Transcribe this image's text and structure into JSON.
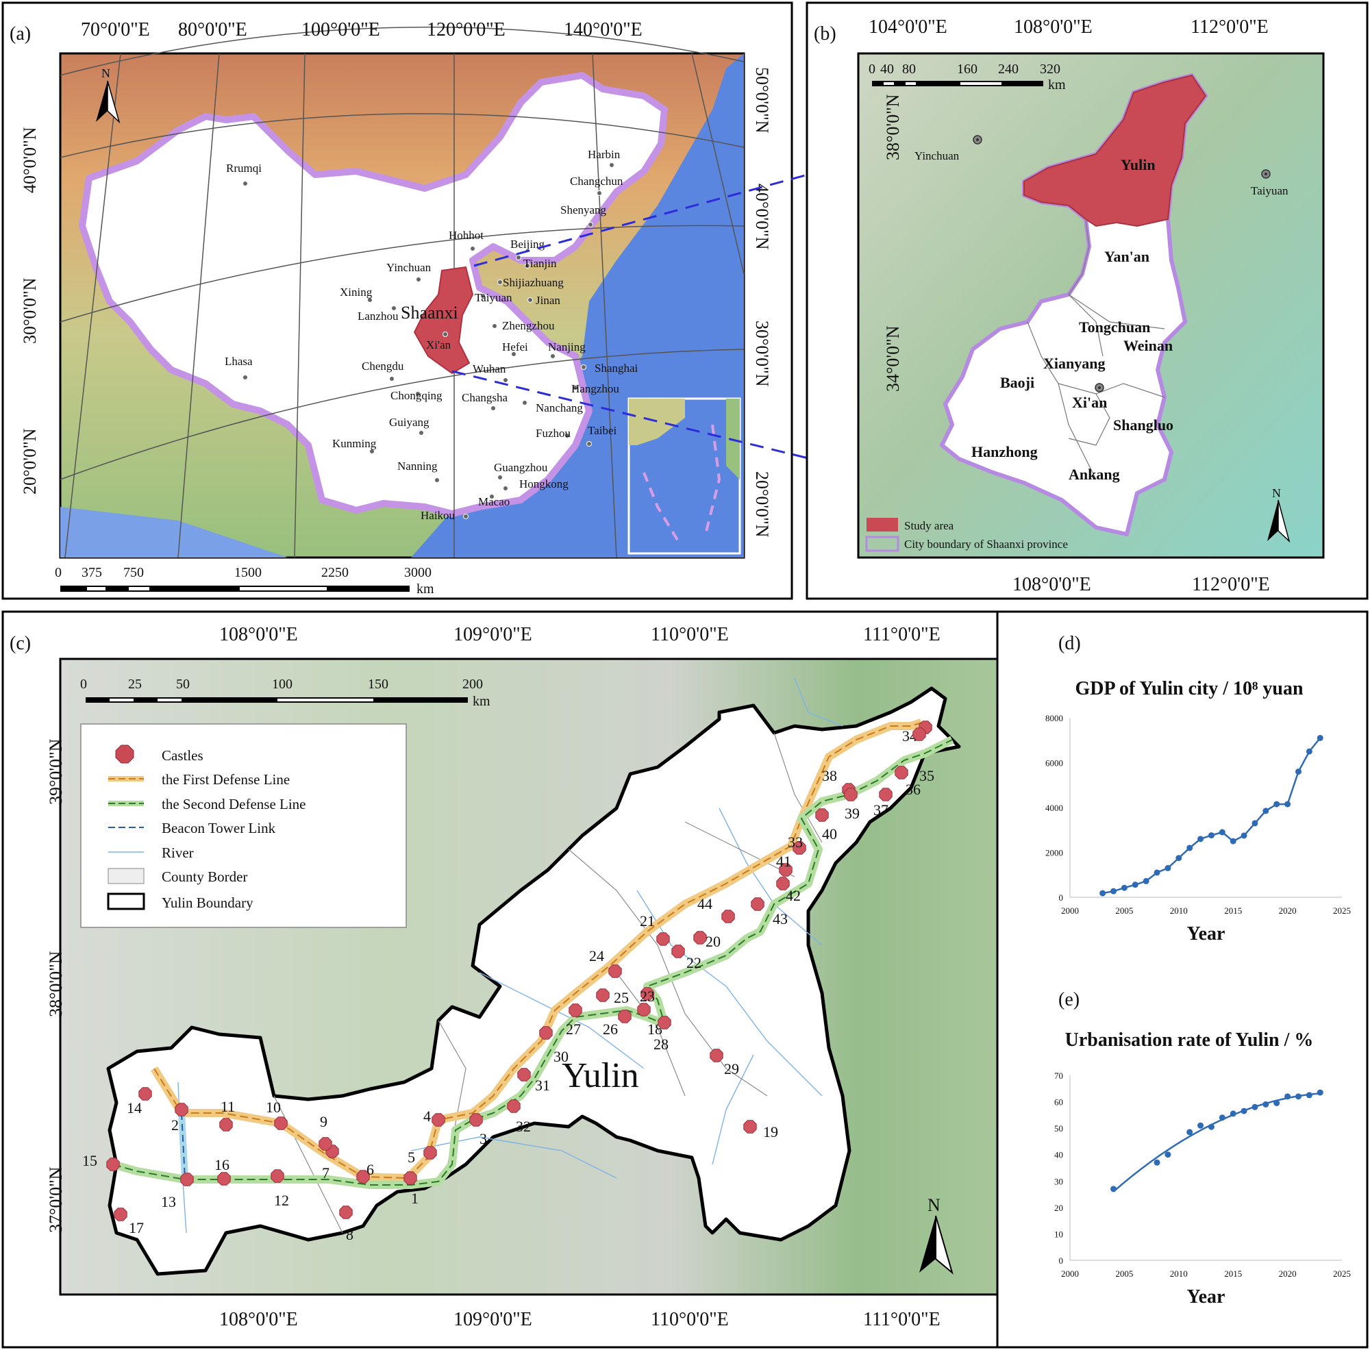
{
  "panels": {
    "a": "(a)",
    "b": "(b)",
    "c": "(c)",
    "d": "(d)",
    "e": "(e)"
  },
  "map_a": {
    "lon_ticks": [
      "70°0'0\"E",
      "80°0'0\"E",
      "100°0'0\"E",
      "120°0'0\"E",
      "140°0'0\"E"
    ],
    "lat_ticks": [
      "50°0'0\"N",
      "40°0'0\"N",
      "30°0'0\"N",
      "20°0'0\"N"
    ],
    "lat_ticks_left": [
      "40°0'0\"N",
      "30°0'0\"N",
      "20°0'0\"N"
    ],
    "highlight": "Shaanxi",
    "cities": [
      "Rrumqi",
      "Harbin",
      "Changchun",
      "Shenyang",
      "Hohhot",
      "Beijing",
      "Tianjin",
      "Yinchuan",
      "Shijiazhuang",
      "Xining",
      "Taiyuan",
      "Jinan",
      "Lanzhou",
      "Zhengzhou",
      "Xi'an",
      "Hefei",
      "Nanjing",
      "Lhasa",
      "Chengdu",
      "Wuhan",
      "Shanghai",
      "Hangzhou",
      "Chongqing",
      "Changsha",
      "Nanchang",
      "Guiyang",
      "Kunming",
      "Fuzhou",
      "Taibei",
      "Nanning",
      "Guangzhou",
      "Hongkong",
      "Macao",
      "Haikou"
    ],
    "scale": {
      "ticks": [
        "0",
        "375",
        "750",
        "1500",
        "2250",
        "3000"
      ],
      "unit": "km"
    },
    "north": "N"
  },
  "map_b": {
    "lon_ticks_top": [
      "104°0'0\"E",
      "108°0'0\"E",
      "112°0'0\"E"
    ],
    "lon_ticks_bottom": [
      "108°0'0\"E",
      "112°0'0\"E"
    ],
    "lat_ticks": [
      "38°0'0\"N",
      "34°0'0\"N"
    ],
    "scale": {
      "ticks": [
        "0",
        "40",
        "80",
        "160",
        "240",
        "320"
      ],
      "unit": "km"
    },
    "cities": [
      "Yinchuan",
      "Yulin",
      "Taiyuan",
      "Yan'an",
      "Tongchuan",
      "Weinan",
      "Xianyang",
      "Baoji",
      "Xi'an",
      "Shangluo",
      "Hanzhong",
      "Ankang"
    ],
    "legend": [
      "Study area",
      "City boundary of Shaanxi province"
    ],
    "north": "N"
  },
  "map_c": {
    "lon_ticks": [
      "108°0'0\"E",
      "109°0'0\"E",
      "110°0'0\"E",
      "111°0'0\"E"
    ],
    "lat_ticks": [
      "39°0'0\"N",
      "38°0'0\"N",
      "37°0'0\"N"
    ],
    "scale": {
      "ticks": [
        "0",
        "25",
        "50",
        "100",
        "150",
        "200"
      ],
      "unit": "km"
    },
    "legend": [
      "Castles",
      "the First Defense Line",
      "the Second Defense Line",
      "Beacon Tower Link",
      "River",
      "County Border",
      "Yulin Boundary"
    ],
    "title": "Yulin",
    "north": "N",
    "castles": [
      "1",
      "2",
      "3",
      "4",
      "5",
      "6",
      "7",
      "8",
      "9",
      "10",
      "11",
      "12",
      "13",
      "14",
      "15",
      "16",
      "17",
      "18",
      "19",
      "20",
      "21",
      "22",
      "23",
      "24",
      "25",
      "26",
      "27",
      "28",
      "29",
      "30",
      "31",
      "32",
      "33",
      "34",
      "35",
      "36",
      "37",
      "38",
      "39",
      "40",
      "41",
      "42",
      "43",
      "44"
    ]
  },
  "chart_data": [
    {
      "type": "line",
      "title": "GDP of Yulin city / 10⁸ yuan",
      "xlabel": "Year",
      "ylabel": "",
      "x": [
        2003,
        2004,
        2005,
        2006,
        2007,
        2008,
        2009,
        2010,
        2011,
        2012,
        2013,
        2014,
        2015,
        2016,
        2017,
        2018,
        2019,
        2020,
        2021,
        2022,
        2023
      ],
      "values": [
        180,
        270,
        420,
        560,
        720,
        1100,
        1300,
        1750,
        2200,
        2600,
        2760,
        2900,
        2500,
        2750,
        3300,
        3850,
        4150,
        4150,
        5600,
        6500,
        7100
      ],
      "xlim": [
        2000,
        2025
      ],
      "ylim": [
        0,
        8000
      ],
      "xticks": [
        "2000",
        "2005",
        "2010",
        "2015",
        "2020",
        "2025"
      ],
      "yticks": [
        "0",
        "2000",
        "4000",
        "6000",
        "8000"
      ],
      "color": "#2f6bb5"
    },
    {
      "type": "scatter",
      "title": "Urbanisation rate of Yulin / %",
      "xlabel": "Year",
      "ylabel": "",
      "x": [
        2004,
        2008,
        2009,
        2011,
        2012,
        2013,
        2014,
        2015,
        2016,
        2017,
        2018,
        2019,
        2020,
        2021,
        2022,
        2023
      ],
      "values": [
        27,
        37,
        40,
        48.5,
        51,
        50.5,
        54,
        55.5,
        56.5,
        58,
        59,
        59.5,
        62,
        62,
        62.5,
        63.5
      ],
      "trend": true,
      "xlim": [
        2000,
        2025
      ],
      "ylim": [
        0,
        70
      ],
      "xticks": [
        "2000",
        "2005",
        "2010",
        "2015",
        "2020",
        "2025"
      ],
      "yticks": [
        "0",
        "10",
        "20",
        "30",
        "40",
        "50",
        "60",
        "70"
      ],
      "color": "#2f6bb5"
    }
  ]
}
